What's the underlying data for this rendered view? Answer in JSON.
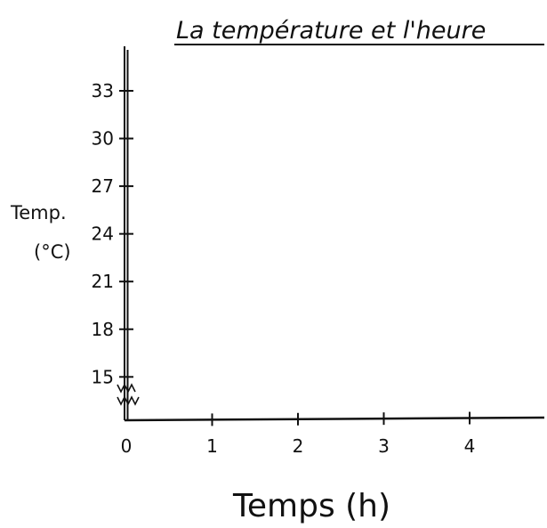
{
  "chart_data": {
    "type": "line",
    "title": "La température et l'heure",
    "xlabel": "Temps (h)",
    "ylabel_line1": "Temp.",
    "ylabel_line2": "(°C)",
    "x_ticks": [
      0,
      1,
      2,
      3,
      4
    ],
    "y_ticks": [
      15,
      18,
      21,
      24,
      27,
      30,
      33
    ],
    "xlim": [
      0,
      4.8
    ],
    "ylim": [
      12,
      35
    ],
    "y_axis_break": true,
    "grid": false,
    "series": []
  },
  "colors": {
    "ink": "#111111",
    "background": "#ffffff"
  }
}
